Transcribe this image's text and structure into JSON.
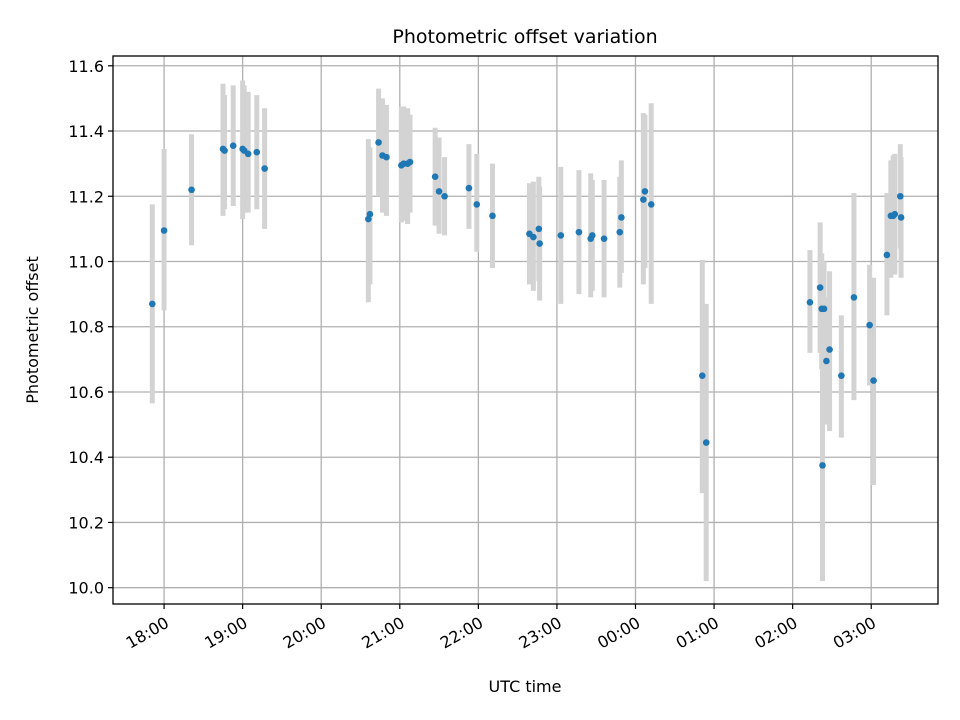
{
  "chart_data": {
    "type": "scatter",
    "title": "Photometric offset variation",
    "xlabel": "UTC time",
    "ylabel": "Photometric offset",
    "x_unit": "hours UTC, continuing past midnight",
    "xlim": [
      17.35,
      27.85
    ],
    "ylim": [
      9.95,
      11.63
    ],
    "x_ticks": [
      {
        "value": 18,
        "label": "18:00"
      },
      {
        "value": 19,
        "label": "19:00"
      },
      {
        "value": 20,
        "label": "20:00"
      },
      {
        "value": 21,
        "label": "21:00"
      },
      {
        "value": 22,
        "label": "22:00"
      },
      {
        "value": 23,
        "label": "23:00"
      },
      {
        "value": 24,
        "label": "00:00"
      },
      {
        "value": 25,
        "label": "01:00"
      },
      {
        "value": 26,
        "label": "02:00"
      },
      {
        "value": 27,
        "label": "03:00"
      }
    ],
    "y_ticks": [
      {
        "value": 10.0,
        "label": "10.0"
      },
      {
        "value": 10.2,
        "label": "10.2"
      },
      {
        "value": 10.4,
        "label": "10.4"
      },
      {
        "value": 10.6,
        "label": "10.6"
      },
      {
        "value": 10.8,
        "label": "10.8"
      },
      {
        "value": 11.0,
        "label": "11.0"
      },
      {
        "value": 11.2,
        "label": "11.2"
      },
      {
        "value": 11.4,
        "label": "11.4"
      },
      {
        "value": 11.6,
        "label": "11.6"
      }
    ],
    "grid": true,
    "marker_color": "#1f77b4",
    "errorbar_color": "#d3d3d3",
    "points": [
      {
        "x": 17.85,
        "y": 10.87,
        "lo": 10.565,
        "hi": 11.175
      },
      {
        "x": 18.0,
        "y": 11.095,
        "lo": 10.85,
        "hi": 11.345
      },
      {
        "x": 18.35,
        "y": 11.22,
        "lo": 11.05,
        "hi": 11.39
      },
      {
        "x": 18.75,
        "y": 11.345,
        "lo": 11.14,
        "hi": 11.545
      },
      {
        "x": 18.77,
        "y": 11.34,
        "lo": 11.16,
        "hi": 11.51
      },
      {
        "x": 18.88,
        "y": 11.355,
        "lo": 11.17,
        "hi": 11.54
      },
      {
        "x": 19.0,
        "y": 11.345,
        "lo": 11.13,
        "hi": 11.555
      },
      {
        "x": 19.02,
        "y": 11.34,
        "lo": 11.15,
        "hi": 11.54
      },
      {
        "x": 19.07,
        "y": 11.33,
        "lo": 11.15,
        "hi": 11.52
      },
      {
        "x": 19.18,
        "y": 11.335,
        "lo": 11.16,
        "hi": 11.51
      },
      {
        "x": 19.28,
        "y": 11.285,
        "lo": 11.1,
        "hi": 11.47
      },
      {
        "x": 20.6,
        "y": 11.13,
        "lo": 10.875,
        "hi": 11.375
      },
      {
        "x": 20.62,
        "y": 11.145,
        "lo": 10.93,
        "hi": 11.35
      },
      {
        "x": 20.73,
        "y": 11.365,
        "lo": 11.2,
        "hi": 11.53
      },
      {
        "x": 20.78,
        "y": 11.325,
        "lo": 11.15,
        "hi": 11.5
      },
      {
        "x": 20.83,
        "y": 11.32,
        "lo": 11.14,
        "hi": 11.48
      },
      {
        "x": 21.02,
        "y": 11.295,
        "lo": 11.12,
        "hi": 11.475
      },
      {
        "x": 21.05,
        "y": 11.3,
        "lo": 11.125,
        "hi": 11.475
      },
      {
        "x": 21.1,
        "y": 11.3,
        "lo": 11.115,
        "hi": 11.47
      },
      {
        "x": 21.13,
        "y": 11.305,
        "lo": 11.15,
        "hi": 11.45
      },
      {
        "x": 21.45,
        "y": 11.26,
        "lo": 11.11,
        "hi": 11.41
      },
      {
        "x": 21.5,
        "y": 11.215,
        "lo": 11.085,
        "hi": 11.38
      },
      {
        "x": 21.57,
        "y": 11.2,
        "lo": 11.08,
        "hi": 11.32
      },
      {
        "x": 21.88,
        "y": 11.225,
        "lo": 11.1,
        "hi": 11.36
      },
      {
        "x": 21.98,
        "y": 11.175,
        "lo": 11.03,
        "hi": 11.33
      },
      {
        "x": 22.18,
        "y": 11.14,
        "lo": 10.98,
        "hi": 11.3
      },
      {
        "x": 22.65,
        "y": 11.085,
        "lo": 10.93,
        "hi": 11.24
      },
      {
        "x": 22.7,
        "y": 11.075,
        "lo": 10.91,
        "hi": 11.245
      },
      {
        "x": 22.77,
        "y": 11.1,
        "lo": 10.94,
        "hi": 11.26
      },
      {
        "x": 22.78,
        "y": 11.055,
        "lo": 10.88,
        "hi": 11.23
      },
      {
        "x": 23.05,
        "y": 11.08,
        "lo": 10.87,
        "hi": 11.29
      },
      {
        "x": 23.28,
        "y": 11.09,
        "lo": 10.9,
        "hi": 11.28
      },
      {
        "x": 23.43,
        "y": 11.07,
        "lo": 10.89,
        "hi": 11.27
      },
      {
        "x": 23.45,
        "y": 11.08,
        "lo": 10.91,
        "hi": 11.25
      },
      {
        "x": 23.6,
        "y": 11.07,
        "lo": 10.89,
        "hi": 11.25
      },
      {
        "x": 23.8,
        "y": 11.09,
        "lo": 10.92,
        "hi": 11.26
      },
      {
        "x": 23.82,
        "y": 11.135,
        "lo": 10.965,
        "hi": 11.31
      },
      {
        "x": 24.1,
        "y": 11.19,
        "lo": 10.93,
        "hi": 11.455
      },
      {
        "x": 24.12,
        "y": 11.215,
        "lo": 10.98,
        "hi": 11.45
      },
      {
        "x": 24.2,
        "y": 11.175,
        "lo": 10.87,
        "hi": 11.485
      },
      {
        "x": 24.85,
        "y": 10.65,
        "lo": 10.29,
        "hi": 11.005
      },
      {
        "x": 24.9,
        "y": 10.445,
        "lo": 10.02,
        "hi": 10.87
      },
      {
        "x": 26.22,
        "y": 10.875,
        "lo": 10.72,
        "hi": 11.035
      },
      {
        "x": 26.35,
        "y": 10.92,
        "lo": 10.72,
        "hi": 11.12
      },
      {
        "x": 26.37,
        "y": 10.855,
        "lo": 10.67,
        "hi": 11.025
      },
      {
        "x": 26.38,
        "y": 10.375,
        "lo": 10.02,
        "hi": 10.73
      },
      {
        "x": 26.4,
        "y": 10.855,
        "lo": 10.7,
        "hi": 11.0
      },
      {
        "x": 26.43,
        "y": 10.695,
        "lo": 10.5,
        "hi": 10.89
      },
      {
        "x": 26.47,
        "y": 10.73,
        "lo": 10.48,
        "hi": 10.97
      },
      {
        "x": 26.62,
        "y": 10.65,
        "lo": 10.46,
        "hi": 10.835
      },
      {
        "x": 26.78,
        "y": 10.89,
        "lo": 10.575,
        "hi": 11.21
      },
      {
        "x": 26.98,
        "y": 10.805,
        "lo": 10.62,
        "hi": 10.99
      },
      {
        "x": 27.03,
        "y": 10.635,
        "lo": 10.315,
        "hi": 10.95
      },
      {
        "x": 27.2,
        "y": 11.02,
        "lo": 10.835,
        "hi": 11.21
      },
      {
        "x": 27.25,
        "y": 11.14,
        "lo": 10.95,
        "hi": 11.31
      },
      {
        "x": 27.28,
        "y": 11.14,
        "lo": 10.96,
        "hi": 11.325
      },
      {
        "x": 27.3,
        "y": 11.145,
        "lo": 10.96,
        "hi": 11.33
      },
      {
        "x": 27.37,
        "y": 11.2,
        "lo": 11.04,
        "hi": 11.36
      },
      {
        "x": 27.38,
        "y": 11.135,
        "lo": 10.95,
        "hi": 11.32
      }
    ]
  }
}
